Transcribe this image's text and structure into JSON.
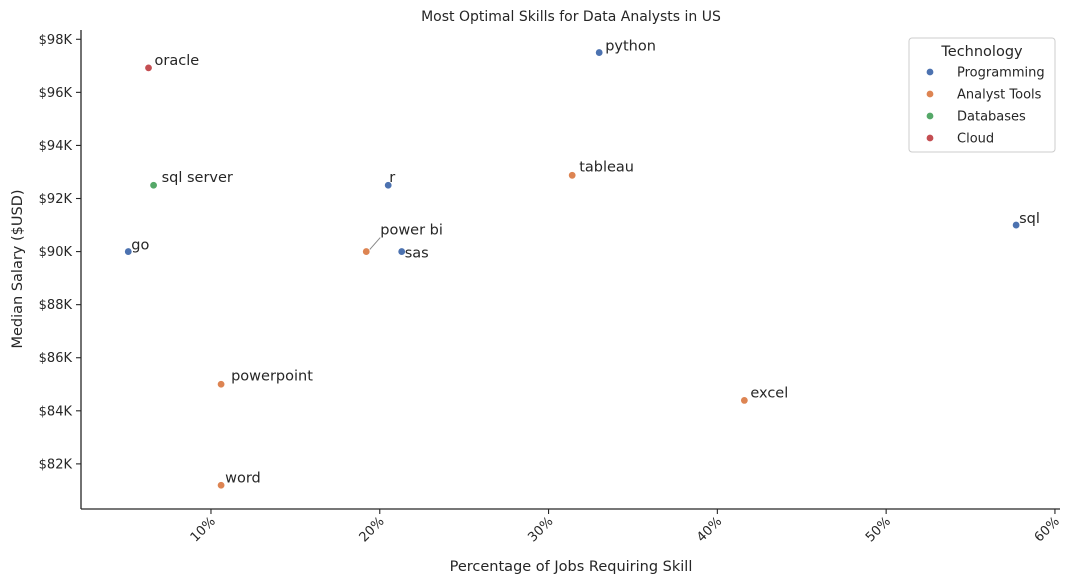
{
  "chart_data": {
    "type": "scatter",
    "title": "Most Optimal Skills for Data Analysts in US",
    "xlabel": "Percentage of Jobs Requiring Skill",
    "ylabel": "Median Salary ($USD)",
    "xlim": [
      2.3,
      60.3
    ],
    "ylim": [
      80300,
      98350
    ],
    "x_ticks": [
      {
        "value": 10,
        "label": "10%"
      },
      {
        "value": 20,
        "label": "20%"
      },
      {
        "value": 30,
        "label": "30%"
      },
      {
        "value": 40,
        "label": "40%"
      },
      {
        "value": 50,
        "label": "50%"
      },
      {
        "value": 60,
        "label": "60%"
      }
    ],
    "y_ticks": [
      {
        "value": 82000,
        "label": "$82K"
      },
      {
        "value": 84000,
        "label": "$84K"
      },
      {
        "value": 86000,
        "label": "$86K"
      },
      {
        "value": 88000,
        "label": "$88K"
      },
      {
        "value": 90000,
        "label": "$90K"
      },
      {
        "value": 92000,
        "label": "$92K"
      },
      {
        "value": 94000,
        "label": "$94K"
      },
      {
        "value": 96000,
        "label": "$96K"
      },
      {
        "value": 98000,
        "label": "$98K"
      }
    ],
    "grid": false,
    "legend": {
      "title": "Technology",
      "position": "top-right",
      "entries": [
        {
          "name": "Programming",
          "color": "#4c72b0"
        },
        {
          "name": "Analyst Tools",
          "color": "#dd8452"
        },
        {
          "name": "Databases",
          "color": "#55a868"
        },
        {
          "name": "Cloud",
          "color": "#c44e52"
        }
      ]
    },
    "points": [
      {
        "label": "python",
        "x": 33.0,
        "y": 97500,
        "technology": "Programming"
      },
      {
        "label": "oracle",
        "x": 6.3,
        "y": 96924,
        "technology": "Cloud"
      },
      {
        "label": "tableau",
        "x": 31.4,
        "y": 92875,
        "technology": "Analyst Tools"
      },
      {
        "label": "sql server",
        "x": 6.6,
        "y": 92500,
        "technology": "Databases"
      },
      {
        "label": "r",
        "x": 20.5,
        "y": 92500,
        "technology": "Programming"
      },
      {
        "label": "sql",
        "x": 57.7,
        "y": 91000,
        "technology": "Programming"
      },
      {
        "label": "go",
        "x": 5.1,
        "y": 90000,
        "technology": "Programming"
      },
      {
        "label": "power bi",
        "x": 19.2,
        "y": 90000,
        "technology": "Analyst Tools"
      },
      {
        "label": "sas",
        "x": 21.3,
        "y": 90000,
        "technology": "Programming"
      },
      {
        "label": "powerpoint",
        "x": 10.6,
        "y": 85000,
        "technology": "Analyst Tools"
      },
      {
        "label": "excel",
        "x": 41.6,
        "y": 84392,
        "technology": "Analyst Tools"
      },
      {
        "label": "word",
        "x": 10.6,
        "y": 81194,
        "technology": "Analyst Tools"
      }
    ]
  }
}
